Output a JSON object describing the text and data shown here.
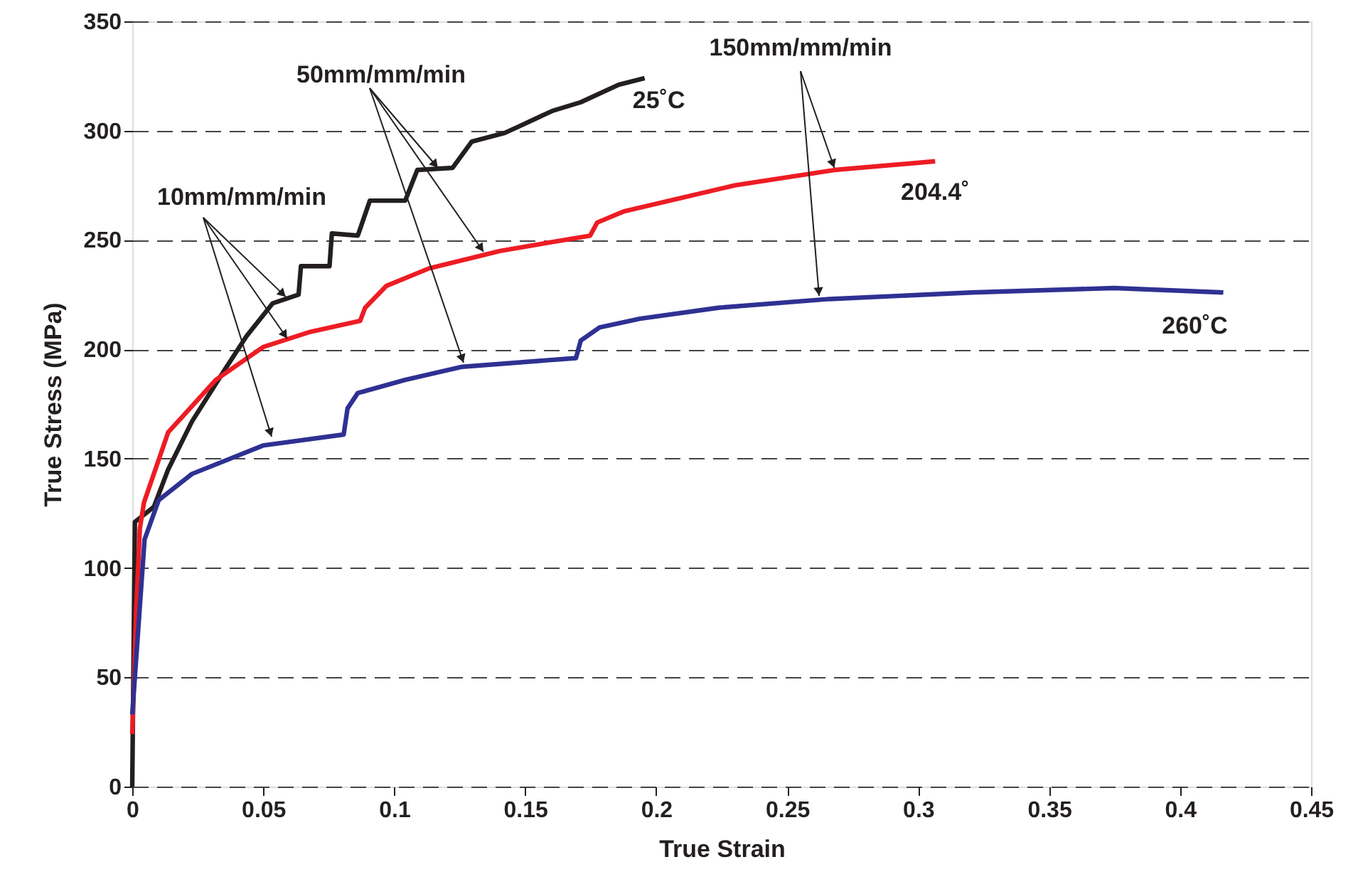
{
  "chart_data": {
    "type": "line",
    "xlabel": "True Strain",
    "ylabel": "True Stress (MPa)",
    "xlim": [
      0,
      0.45
    ],
    "xticks": [
      0,
      0.05,
      0.1,
      0.15,
      0.2,
      0.25,
      0.3,
      0.35,
      0.4,
      0.45
    ],
    "ylim": [
      0,
      350
    ],
    "yticks": [
      0,
      50,
      100,
      150,
      200,
      250,
      300,
      350
    ],
    "grid": "y",
    "legend": false,
    "marker": "none",
    "line_style": "solid",
    "annotations": [
      {
        "text": "10mm/mm/min",
        "x": 0.0586,
        "y": 224
      },
      {
        "text": "50mm/mm/min",
        "x": 0.1167,
        "y": 283
      },
      {
        "text": "150mm/mm/min",
        "x": 0.268,
        "y": 283
      }
    ],
    "series": [
      {
        "name": "25˚C",
        "color": "#231f20",
        "x": [
          0,
          0.001,
          0.0083,
          0.0137,
          0.0228,
          0.0355,
          0.0436,
          0.0536,
          0.0635,
          0.0644,
          0.0753,
          0.0762,
          0.0861,
          0.0907,
          0.1042,
          0.1088,
          0.1223,
          0.1296,
          0.1422,
          0.1477,
          0.1603,
          0.1712,
          0.1857,
          0.1956
        ],
        "values": [
          0,
          121,
          128,
          145,
          167,
          191,
          206,
          221,
          225,
          238,
          238,
          253,
          252,
          268,
          268,
          282,
          283,
          295,
          299,
          302,
          309,
          313,
          321,
          324
        ]
      },
      {
        "name": "204.4˚",
        "color": "#ed1c24",
        "x": [
          0,
          0.0015,
          0.0029,
          0.0045,
          0.0137,
          0.0319,
          0.0499,
          0.068,
          0.087,
          0.0889,
          0.097,
          0.1133,
          0.1404,
          0.1748,
          0.1775,
          0.1875,
          0.23,
          0.268,
          0.3065
        ],
        "values": [
          24,
          80,
          118,
          130,
          162,
          186,
          201,
          208,
          213,
          219,
          229,
          237,
          245,
          252,
          258,
          263,
          275,
          282,
          286
        ]
      },
      {
        "name": "260˚C",
        "color": "#2e3192",
        "x": [
          0,
          0.0047,
          0.0101,
          0.0228,
          0.0499,
          0.0807,
          0.0822,
          0.0861,
          0.1042,
          0.126,
          0.1694,
          0.1712,
          0.1784,
          0.1938,
          0.2237,
          0.2662,
          0.3205,
          0.3748,
          0.4165
        ],
        "values": [
          33,
          113,
          131,
          143,
          156,
          161,
          173,
          180,
          186,
          192,
          196,
          204,
          210,
          214,
          219,
          223,
          226,
          228,
          226
        ]
      }
    ]
  }
}
